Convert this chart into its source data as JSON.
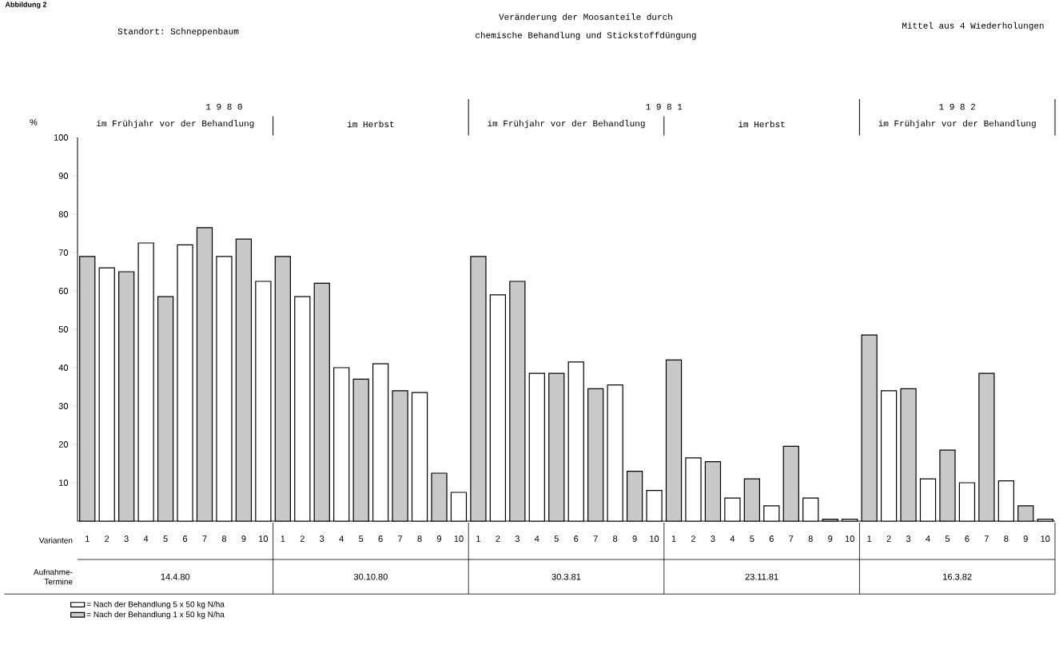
{
  "chart_data": {
    "type": "bar",
    "title": "Veränderung der Moosanteile durch",
    "subtitle": "chemische Behandlung und Stickstoffdüngung",
    "ylabel": "%",
    "categories": [
      "1",
      "2",
      "3",
      "4",
      "5",
      "6",
      "7",
      "8",
      "9",
      "10",
      "1",
      "2",
      "3",
      "4",
      "5",
      "6",
      "7",
      "8",
      "9",
      "10",
      "1",
      "2",
      "3",
      "4",
      "5",
      "6",
      "7",
      "8",
      "9",
      "10",
      "1",
      "2",
      "3",
      "4",
      "5",
      "6",
      "7",
      "8",
      "9",
      "10",
      "1",
      "2",
      "3",
      "4",
      "5",
      "6",
      "7",
      "8",
      "9",
      "10"
    ],
    "series": [
      {
        "name": "= Nach der Behandlung 5 x 50 kg N/ha",
        "color": "#ffffff",
        "values": [
          null,
          66,
          null,
          72.5,
          null,
          72,
          null,
          69,
          null,
          62.5,
          null,
          58.5,
          null,
          40,
          null,
          41,
          null,
          33.5,
          null,
          7.5,
          null,
          59,
          null,
          38.5,
          null,
          41.5,
          null,
          35.5,
          null,
          8,
          null,
          16.5,
          null,
          6,
          null,
          4,
          null,
          6,
          null,
          0.5,
          null,
          34,
          null,
          11,
          null,
          10,
          null,
          10.5,
          null,
          0.5
        ]
      },
      {
        "name": "= Nach der Behandlung 1 x 50 kg N/ha",
        "color": "#c8c8c8",
        "values": [
          69,
          null,
          65,
          null,
          58.5,
          null,
          76.5,
          null,
          73.5,
          null,
          69,
          null,
          62,
          null,
          37,
          null,
          34,
          null,
          12.5,
          null,
          69,
          null,
          62.5,
          null,
          38.5,
          null,
          34.5,
          null,
          13,
          null,
          42,
          null,
          15.5,
          null,
          11,
          null,
          19.5,
          null,
          0.5,
          null,
          48.5,
          null,
          34.5,
          null,
          18.5,
          null,
          38.5,
          null,
          4,
          null
        ]
      }
    ],
    "ylim": [
      0,
      100
    ],
    "yticks": [
      10,
      20,
      30,
      40,
      50,
      60,
      70,
      80,
      90,
      100
    ],
    "legend": "bottom left",
    "annotations": [
      "Abbildung 2",
      "Standort:  Schneppenbaum",
      "Mittel aus 4 Wiederholungen",
      "1 9 8 0",
      "1 9 8 1",
      "1 9 8 2",
      "im Frühjahr vor der Behandlung",
      "im Herbst",
      "im Frühjahr vor der Behandlung",
      "im Herbst",
      "im Frühjahr vor der Behandlung",
      "Varianten",
      "Aufnahme-Termine",
      "14.4.80",
      "30.10.80",
      "30.3.81",
      "23.11.81",
      "16.3.82"
    ]
  }
}
